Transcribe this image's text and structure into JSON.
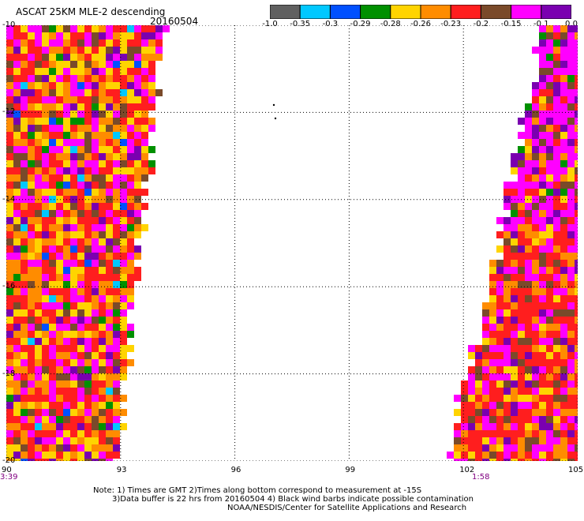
{
  "header": {
    "title": "ASCAT 25KM MLE-2 descending",
    "date": "20160504"
  },
  "colorbar": {
    "labels": [
      "-1.0",
      "-0.35",
      "-0.3",
      "-0.29",
      "-0.28",
      "-0.26",
      "-0.23",
      "-0.2",
      "-0.15",
      "-0.1",
      "0.0"
    ],
    "colors": [
      "#606060",
      "#00c8ff",
      "#0050ff",
      "#009000",
      "#ffd400",
      "#ff8c00",
      "#ff1e1e",
      "#7a4a2a",
      "#ff00ff",
      "#7a00b0"
    ]
  },
  "axes": {
    "lat_labels": [
      "-10",
      "-12",
      "-14",
      "-16",
      "-18",
      "-20"
    ],
    "lon_labels": [
      "90",
      "93",
      "96",
      "99",
      "102",
      "105"
    ]
  },
  "times": {
    "left": "3:39",
    "right": "1:58"
  },
  "notes": {
    "line1": "Note: 1) Times are GMT 2)Times along bottom correspond to measurement at -15S",
    "line2": "3)Data buffer is 22 hrs from 20160504 4) Black wind barbs indicate possible contamination",
    "line3": "NOAA/NESDIS/Center for Satellite Applications and Research"
  },
  "map_data": {
    "lon_range": [
      90,
      105
    ],
    "lat_range": [
      -20,
      -10
    ],
    "left_swath_edge_lon": [
      94.2,
      94.0,
      93.8,
      93.5,
      93.3,
      93.0
    ],
    "right_swath_edge_lon": [
      103.9,
      103.6,
      103.0,
      102.6,
      102.0,
      101.5
    ]
  }
}
